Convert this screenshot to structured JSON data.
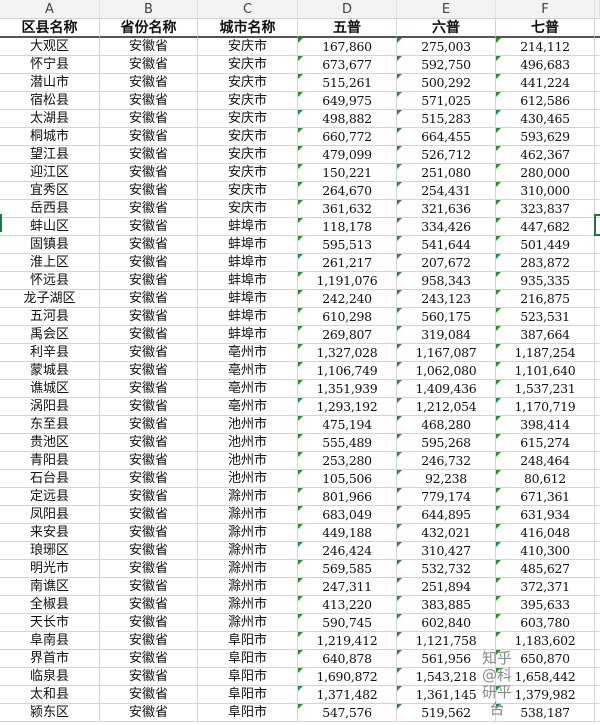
{
  "column_letters": [
    "A",
    "B",
    "C",
    "D",
    "E",
    "F"
  ],
  "headers": [
    "区县名称",
    "省份名称",
    "城市名称",
    "五普",
    "六普",
    "七普"
  ],
  "rows": [
    [
      "大观区",
      "安徽省",
      "安庆市",
      "167,860",
      "275,003",
      "214,112"
    ],
    [
      "怀宁县",
      "安徽省",
      "安庆市",
      "673,677",
      "592,750",
      "496,683"
    ],
    [
      "潜山市",
      "安徽省",
      "安庆市",
      "515,261",
      "500,292",
      "441,224"
    ],
    [
      "宿松县",
      "安徽省",
      "安庆市",
      "649,975",
      "571,025",
      "612,586"
    ],
    [
      "太湖县",
      "安徽省",
      "安庆市",
      "498,882",
      "515,283",
      "430,465"
    ],
    [
      "桐城市",
      "安徽省",
      "安庆市",
      "660,772",
      "664,455",
      "593,629"
    ],
    [
      "望江县",
      "安徽省",
      "安庆市",
      "479,099",
      "526,712",
      "462,367"
    ],
    [
      "迎江区",
      "安徽省",
      "安庆市",
      "150,221",
      "251,080",
      "280,000"
    ],
    [
      "宜秀区",
      "安徽省",
      "安庆市",
      "264,670",
      "254,431",
      "310,000"
    ],
    [
      "岳西县",
      "安徽省",
      "安庆市",
      "361,632",
      "321,636",
      "323,837"
    ],
    [
      "蚌山区",
      "安徽省",
      "蚌埠市",
      "118,178",
      "334,426",
      "447,682"
    ],
    [
      "固镇县",
      "安徽省",
      "蚌埠市",
      "595,513",
      "541,644",
      "501,449"
    ],
    [
      "淮上区",
      "安徽省",
      "蚌埠市",
      "261,217",
      "207,672",
      "283,872"
    ],
    [
      "怀远县",
      "安徽省",
      "蚌埠市",
      "1,191,076",
      "958,343",
      "935,335"
    ],
    [
      "龙子湖区",
      "安徽省",
      "蚌埠市",
      "242,240",
      "243,123",
      "216,875"
    ],
    [
      "五河县",
      "安徽省",
      "蚌埠市",
      "610,298",
      "560,175",
      "523,531"
    ],
    [
      "禹会区",
      "安徽省",
      "蚌埠市",
      "269,807",
      "319,084",
      "387,664"
    ],
    [
      "利辛县",
      "安徽省",
      "亳州市",
      "1,327,028",
      "1,167,087",
      "1,187,254"
    ],
    [
      "蒙城县",
      "安徽省",
      "亳州市",
      "1,106,749",
      "1,062,080",
      "1,101,640"
    ],
    [
      "谯城区",
      "安徽省",
      "亳州市",
      "1,351,939",
      "1,409,436",
      "1,537,231"
    ],
    [
      "涡阳县",
      "安徽省",
      "亳州市",
      "1,293,192",
      "1,212,054",
      "1,170,719"
    ],
    [
      "东至县",
      "安徽省",
      "池州市",
      "475,194",
      "468,280",
      "398,414"
    ],
    [
      "贵池区",
      "安徽省",
      "池州市",
      "555,489",
      "595,268",
      "615,274"
    ],
    [
      "青阳县",
      "安徽省",
      "池州市",
      "253,280",
      "246,732",
      "248,464"
    ],
    [
      "石台县",
      "安徽省",
      "池州市",
      "105,506",
      "92,238",
      "80,612"
    ],
    [
      "定远县",
      "安徽省",
      "滁州市",
      "801,966",
      "779,174",
      "671,361"
    ],
    [
      "凤阳县",
      "安徽省",
      "滁州市",
      "683,049",
      "644,895",
      "631,934"
    ],
    [
      "来安县",
      "安徽省",
      "滁州市",
      "449,188",
      "432,021",
      "416,048"
    ],
    [
      "琅琊区",
      "安徽省",
      "滁州市",
      "246,424",
      "310,427",
      "410,300"
    ],
    [
      "明光市",
      "安徽省",
      "滁州市",
      "569,585",
      "532,732",
      "485,627"
    ],
    [
      "南谯区",
      "安徽省",
      "滁州市",
      "247,311",
      "251,894",
      "372,371"
    ],
    [
      "全椒县",
      "安徽省",
      "滁州市",
      "413,220",
      "383,885",
      "395,633"
    ],
    [
      "天长市",
      "安徽省",
      "滁州市",
      "590,745",
      "602,840",
      "603,780"
    ],
    [
      "阜南县",
      "安徽省",
      "阜阳市",
      "1,219,412",
      "1,121,758",
      "1,183,602"
    ],
    [
      "界首市",
      "安徽省",
      "阜阳市",
      "640,878",
      "561,956",
      "650,870"
    ],
    [
      "临泉县",
      "安徽省",
      "阜阳市",
      "1,690,872",
      "1,543,218",
      "1,658,442"
    ],
    [
      "太和县",
      "安徽省",
      "阜阳市",
      "1,371,482",
      "1,361,145",
      "1,379,982"
    ],
    [
      "颍东区",
      "安徽省",
      "阜阳市",
      "547,576",
      "519,562",
      "538,187"
    ]
  ],
  "watermark": "知乎 @科研平台",
  "colors": {
    "accent": "#1f7a3a",
    "error_triangle": "#2e8b3a"
  }
}
